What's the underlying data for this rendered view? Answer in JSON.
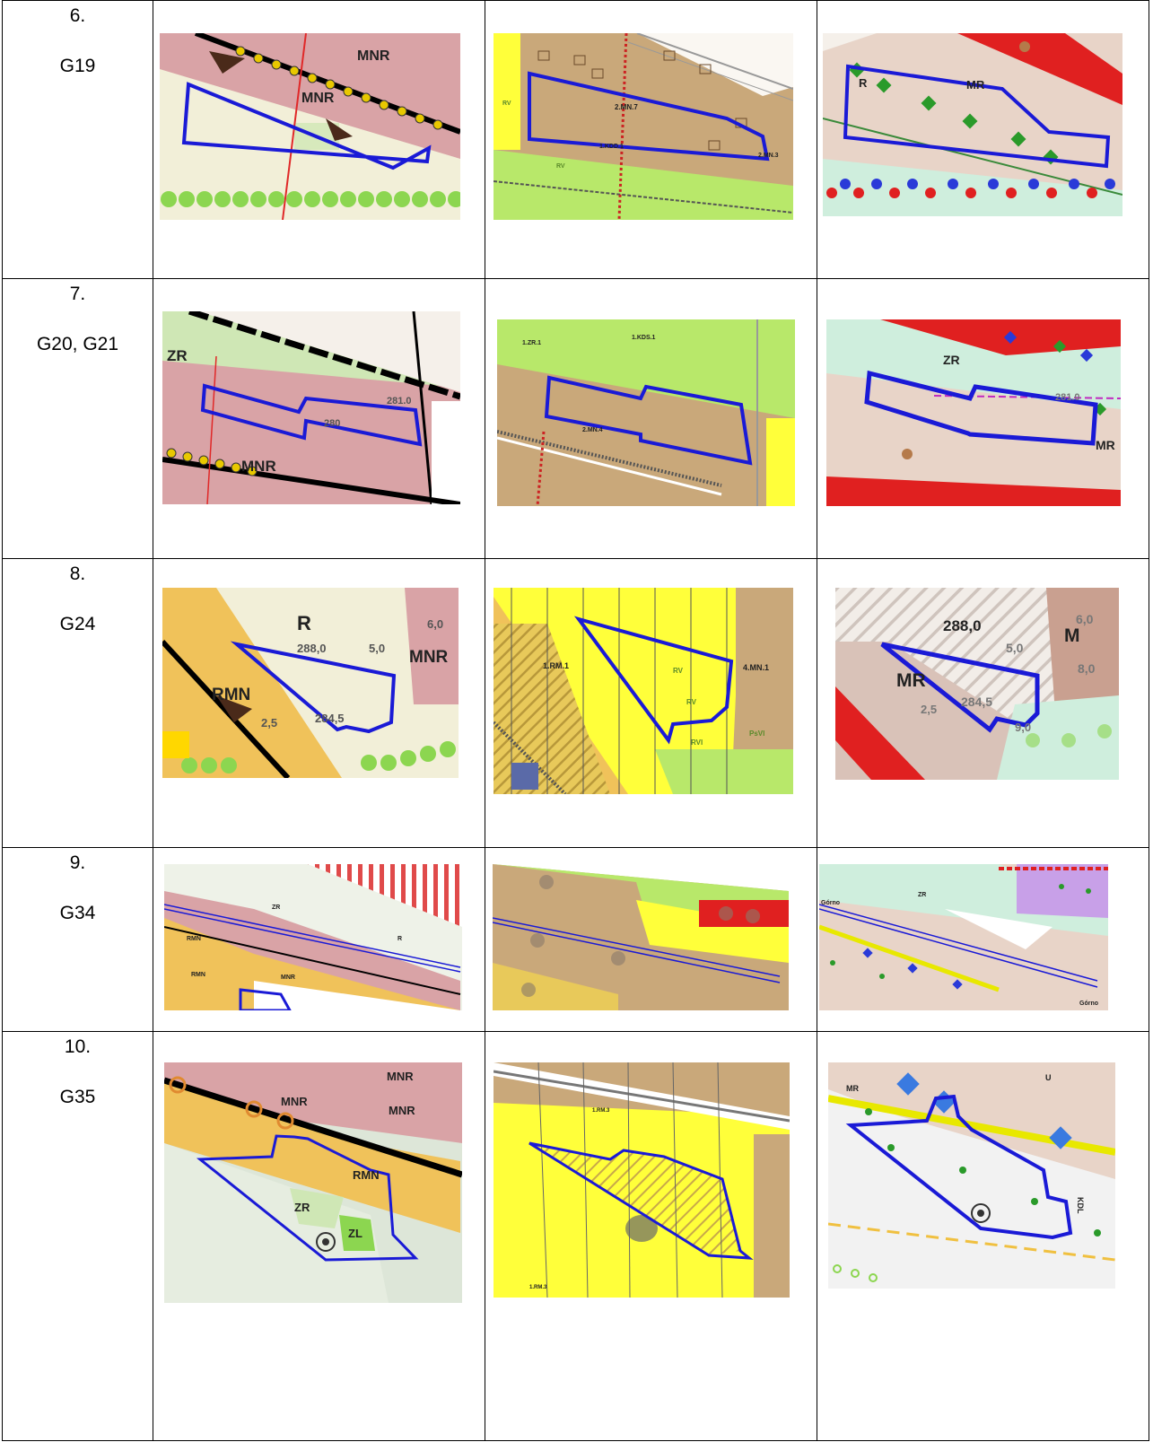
{
  "rows": [
    {
      "num": "6.",
      "codes": "G19",
      "maps": [
        {
          "labels": [
            "MNR",
            "MNR"
          ]
        },
        {
          "labels": [
            "2.MN.7",
            "1.KDD.1",
            "2.MN.3",
            "RV",
            "RV"
          ]
        },
        {
          "labels": [
            "R",
            "MR"
          ]
        }
      ]
    },
    {
      "num": "7.",
      "codes": "G20, G21",
      "maps": [
        {
          "labels": [
            "ZR",
            "MNR",
            "281.0",
            "280"
          ]
        },
        {
          "labels": [
            "1.ZR.1",
            "1.KDS.1",
            "2.MN.4"
          ]
        },
        {
          "labels": [
            "ZR",
            "MR",
            "281.0"
          ]
        }
      ]
    },
    {
      "num": "8.",
      "codes": "G24",
      "maps": [
        {
          "labels": [
            "R",
            "288,0",
            "5,0",
            "MNR",
            "6,0",
            "RMN",
            "2,5",
            "284,5"
          ]
        },
        {
          "labels": [
            "1.RM.1",
            "4.MN.1",
            "RV",
            "RV",
            "PsVI",
            "RVI"
          ]
        },
        {
          "labels": [
            "288,0",
            "5,0",
            "M",
            "6,0",
            "8,0",
            "MR",
            "2,5",
            "284,5",
            "9,0"
          ]
        }
      ]
    },
    {
      "num": "9.",
      "codes": "G34",
      "maps": [
        {
          "labels": [
            "ZR",
            "RMN",
            "RMN",
            "MNR",
            "R"
          ]
        },
        {
          "labels": []
        },
        {
          "labels": [
            "Górno",
            "Górno",
            "ZR"
          ]
        }
      ]
    },
    {
      "num": "10.",
      "codes": "G35",
      "maps": [
        {
          "labels": [
            "MNR",
            "MNR",
            "MNR",
            "ZR",
            "RMN",
            "ZL"
          ]
        },
        {
          "labels": [
            "1.RM.3",
            "1.RM.3"
          ]
        },
        {
          "labels": [
            "MR",
            "KDL",
            "U"
          ]
        }
      ]
    }
  ],
  "colors": {
    "boundary": "#1a1ad6",
    "mnr_pink": "#d9a3a6",
    "agri_cream": "#f2efd8",
    "meadow_green": "#c9e6b0",
    "res_tan": "#c9a87a",
    "plan_yellow": "#ffff3a",
    "lime": "#b8e86a",
    "rmn_orange": "#f0c25a"
  }
}
